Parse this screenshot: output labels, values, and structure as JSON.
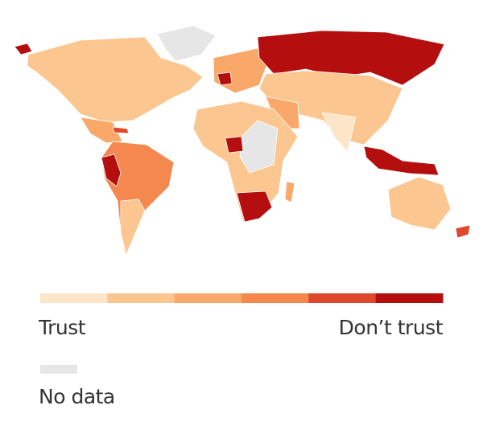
{
  "legend": {
    "colors": [
      "#fde5c8",
      "#fbc68f",
      "#f9a86a",
      "#f4884e",
      "#e0482e",
      "#b50e0e"
    ],
    "low_label": "Trust",
    "high_label": "Don’t trust",
    "no_data_label": "No data",
    "no_data_color": "#e6e6e6"
  }
}
